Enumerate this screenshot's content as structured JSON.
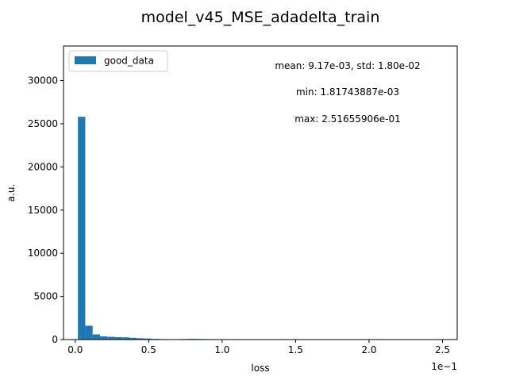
{
  "chart_data": {
    "type": "bar",
    "title": "model_v45_MSE_adadelta_train",
    "xlabel": "loss",
    "ylabel": "a.u.",
    "x_offset_label": "1e−1",
    "xlim": [
      -0.08,
      2.6
    ],
    "ylim": [
      0,
      34000
    ],
    "x_ticks": [
      0.0,
      0.5,
      1.0,
      1.5,
      2.0,
      2.5
    ],
    "x_tick_labels": [
      "0.0",
      "0.5",
      "1.0",
      "1.5",
      "2.0",
      "2.5"
    ],
    "y_ticks": [
      0,
      5000,
      10000,
      15000,
      20000,
      25000,
      30000
    ],
    "y_tick_labels": [
      "0",
      "5000",
      "10000",
      "15000",
      "20000",
      "25000",
      "30000"
    ],
    "grid": false,
    "legend_position": "top-left",
    "series": [
      {
        "name": "good_data",
        "color": "#1f77b4",
        "bins": [
          0.0182,
          0.0682,
          0.1182,
          0.1682,
          0.2182,
          0.2682,
          0.3182,
          0.3682,
          0.4182,
          0.4682,
          0.5182,
          0.5682,
          0.6182,
          0.6682,
          0.7182,
          0.7682,
          0.8182,
          0.8682,
          0.9182,
          0.9682,
          1.0182,
          1.0682,
          1.1182,
          1.1682,
          1.2182,
          1.2682,
          1.3182,
          1.3682,
          1.4182,
          1.4682,
          1.5182,
          1.5682,
          1.6182,
          1.6682,
          1.7182,
          1.7682,
          1.8182,
          1.8682,
          1.9182,
          1.9682,
          2.0182,
          2.0682,
          2.1182,
          2.1682,
          2.2182,
          2.2682,
          2.3182,
          2.3682,
          2.4182,
          2.4682,
          2.5182
        ],
        "values": [
          25800,
          1600,
          600,
          380,
          320,
          280,
          260,
          200,
          150,
          120,
          80,
          60,
          40,
          30,
          60,
          80,
          70,
          60,
          50,
          40,
          25,
          20,
          15,
          10,
          10,
          8,
          6,
          5,
          4,
          4,
          3,
          3,
          3,
          2,
          2,
          2,
          2,
          2,
          1,
          1,
          1,
          1,
          1,
          1,
          1,
          1,
          1,
          1,
          1,
          1
        ]
      }
    ],
    "annotations": [
      "mean: 9.17e-03, std: 1.80e-02",
      "min: 1.81743887e-03",
      "max: 2.51655906e-01"
    ]
  }
}
